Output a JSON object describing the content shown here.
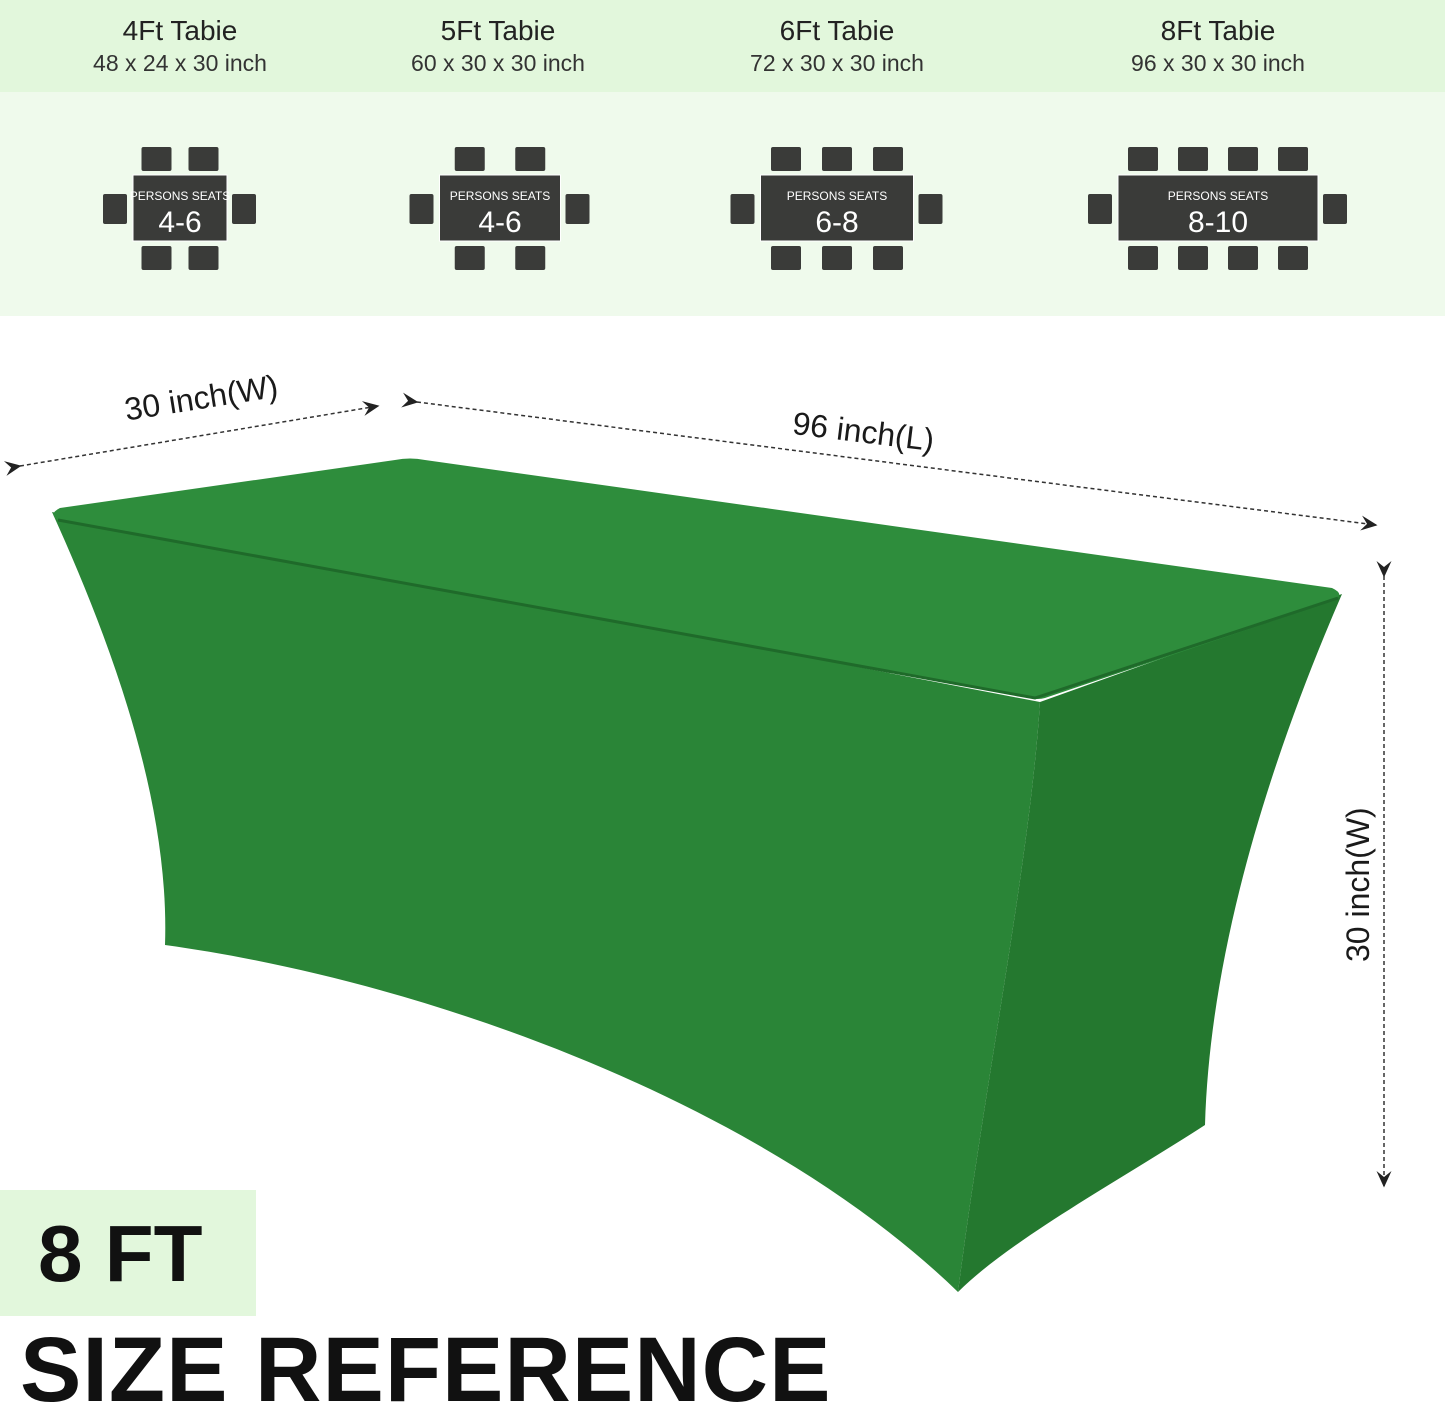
{
  "sizes": [
    {
      "name": "4Ft Tabie",
      "dims": "48 x 24 x 30 inch",
      "seats_label": "PERSONS SEATS",
      "seats": "4-6",
      "chairs_per_long_side": 2
    },
    {
      "name": "5Ft Tabie",
      "dims": "60 x 30 x 30 inch",
      "seats_label": "PERSONS SEATS",
      "seats": "4-6",
      "chairs_per_long_side": 2
    },
    {
      "name": "6Ft Tabie",
      "dims": "72 x 30 x 30 inch",
      "seats_label": "PERSONS SEATS",
      "seats": "6-8",
      "chairs_per_long_side": 3
    },
    {
      "name": "8Ft Tabie",
      "dims": "96 x 30 x 30 inch",
      "seats_label": "PERSONS SEATS",
      "seats": "8-10",
      "chairs_per_long_side": 4
    }
  ],
  "dimensions": {
    "width_label": "30 inch(W)",
    "length_label": "96 inch(L)",
    "height_label": "30 inch(W)"
  },
  "badge": "8 FT",
  "title": "SIZE REFERENCE",
  "colors": {
    "cover_green": "#2b8a3a",
    "header_band": "#e2f7dc",
    "diagram_band": "#effaec",
    "diagram_dark": "#3a3b39"
  }
}
